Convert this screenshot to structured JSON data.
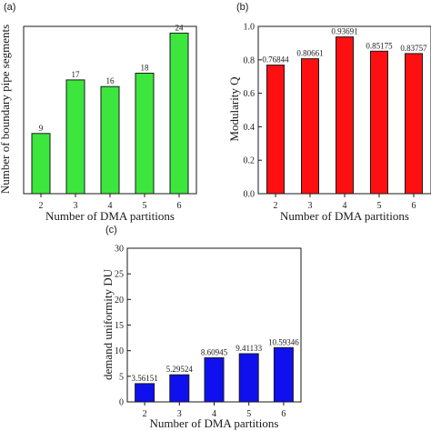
{
  "chart_data": [
    {
      "type": "bar",
      "panel_label": "(a)",
      "categories": [
        "2",
        "3",
        "4",
        "5",
        "6"
      ],
      "values": [
        9,
        17,
        16,
        18,
        24
      ],
      "data_labels": [
        "9",
        "17",
        "16",
        "18",
        "24"
      ],
      "xlabel": "Number of DMA partitions",
      "ylabel": "Number of boundary pipe segments",
      "ylim": [
        0,
        25
      ],
      "yticks": [],
      "bar_color": "#3ce63c",
      "grid": false,
      "legend": "none"
    },
    {
      "type": "bar",
      "panel_label": "(b)",
      "categories": [
        "2",
        "3",
        "4",
        "5",
        "6"
      ],
      "values": [
        0.76844,
        0.80661,
        0.93691,
        0.85175,
        0.83757
      ],
      "data_labels": [
        "0.76844",
        "0.80661",
        "0.93691",
        "0.85175",
        "0.83757"
      ],
      "xlabel": "Number of DMA partitions",
      "ylabel": "Modularity Q",
      "ylim": [
        0,
        1.0
      ],
      "yticks": [
        "0.0",
        "0.2",
        "0.4",
        "0.6",
        "0.8",
        "1.0"
      ],
      "bar_color": "#ff1010",
      "grid": false,
      "legend": "none"
    },
    {
      "type": "bar",
      "panel_label": "(c)",
      "categories": [
        "2",
        "3",
        "4",
        "5",
        "6"
      ],
      "values": [
        3.56151,
        5.29524,
        8.60945,
        9.41133,
        10.59346
      ],
      "data_labels": [
        "3.56151",
        "5.29524",
        "8.60945",
        "9.41133",
        "10.59346"
      ],
      "xlabel": "Number of DMA partitions",
      "ylabel": "demand uniformity DU",
      "ylim": [
        0,
        30
      ],
      "yticks": [
        "0",
        "5",
        "10",
        "15",
        "20",
        "25",
        "30"
      ],
      "bar_color": "#1010ee",
      "grid": false,
      "legend": "none"
    }
  ]
}
